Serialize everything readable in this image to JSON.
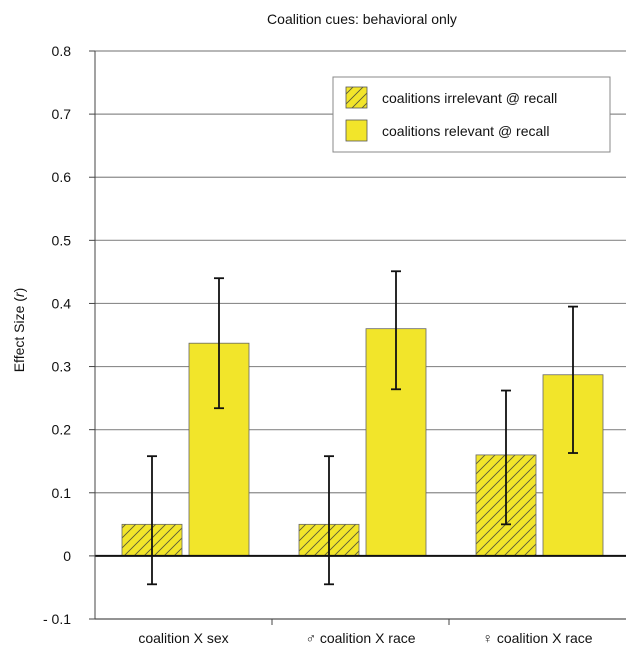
{
  "chart_data": {
    "type": "bar",
    "title": "Coalition cues: behavioral only",
    "ylabel": "Effect Size (r)",
    "ylabel_prefix": "Effect Size (",
    "ylabel_var": "r",
    "ylabel_suffix": ")",
    "ylim": [
      -0.1,
      0.8
    ],
    "yticks": [
      -0.1,
      0,
      0.1,
      0.2,
      0.3,
      0.4,
      0.5,
      0.6,
      0.7,
      0.8
    ],
    "ytick_labels": [
      "- 0.1",
      "0",
      "0.1",
      "0.2",
      "0.3",
      "0.4",
      "0.5",
      "0.6",
      "0.7",
      "0.8"
    ],
    "grid": true,
    "legend_position": "top-right",
    "categories": [
      "coalition X sex",
      "♂ coalition X race",
      "♀ coalition X race"
    ],
    "series": [
      {
        "name": "coalitions irrelevant @ recall",
        "pattern": "hatched",
        "color": "#f2e52a",
        "values": [
          0.05,
          0.05,
          0.16
        ],
        "err_low": [
          -0.045,
          -0.045,
          0.05
        ],
        "err_high": [
          0.158,
          0.158,
          0.262
        ]
      },
      {
        "name": "coalitions relevant @ recall",
        "pattern": "solid",
        "color": "#f2e52a",
        "values": [
          0.337,
          0.36,
          0.287
        ],
        "err_low": [
          0.234,
          0.264,
          0.163
        ],
        "err_high": [
          0.44,
          0.451,
          0.395
        ]
      }
    ]
  }
}
